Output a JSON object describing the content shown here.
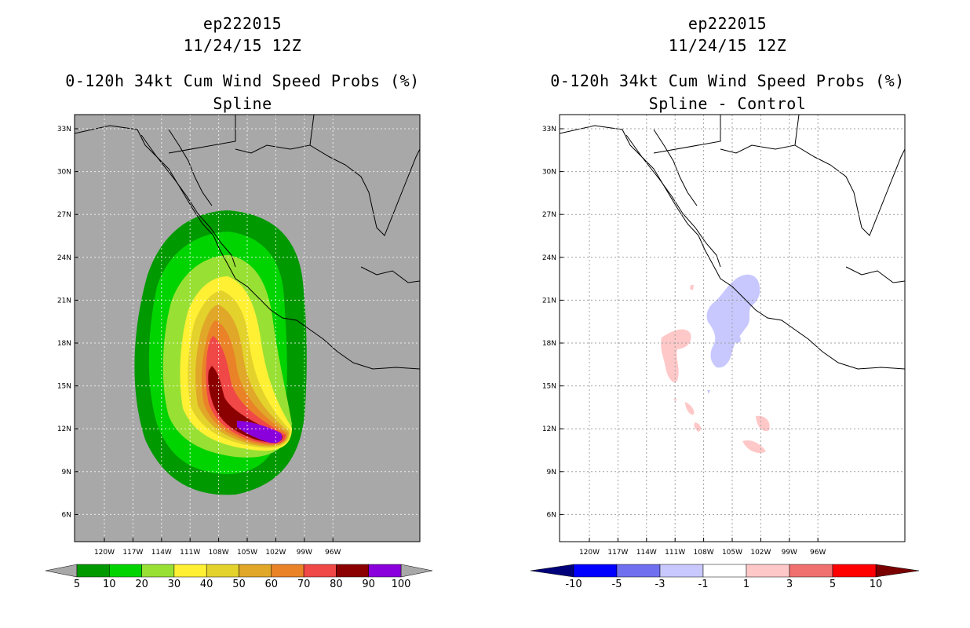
{
  "chart_data": [
    {
      "type": "heatmap",
      "storm_id": "ep222015",
      "datetime": "11/24/15 12Z",
      "title": "0-120h 34kt Cum Wind Speed Probs (%)",
      "subtitle": "Spline",
      "x_tick_labels": [
        "120W",
        "117W",
        "114W",
        "111W",
        "108W",
        "105W",
        "102W",
        "99W",
        "96W"
      ],
      "y_tick_labels": [
        "33N",
        "30N",
        "27N",
        "24N",
        "21N",
        "18N",
        "15N",
        "12N",
        "9N",
        "6N"
      ],
      "colorbar": {
        "labels": [
          "5",
          "10",
          "20",
          "30",
          "40",
          "50",
          "60",
          "70",
          "80",
          "90",
          "100"
        ],
        "colors": [
          "#009900",
          "#00d400",
          "#99e034",
          "#fff033",
          "#e3d22c",
          "#e0a728",
          "#ea8228",
          "#f04747",
          "#8b0000",
          "#8a00dc"
        ]
      },
      "grid": true
    },
    {
      "type": "heatmap",
      "storm_id": "ep222015",
      "datetime": "11/24/15 12Z",
      "title": "0-120h 34kt Cum Wind Speed Probs (%)",
      "subtitle": "Spline - Control",
      "x_tick_labels": [
        "120W",
        "117W",
        "114W",
        "111W",
        "108W",
        "105W",
        "102W",
        "99W",
        "96W"
      ],
      "y_tick_labels": [
        "33N",
        "30N",
        "27N",
        "24N",
        "21N",
        "18N",
        "15N",
        "12N",
        "9N",
        "6N"
      ],
      "colorbar": {
        "labels": [
          "-10",
          "-5",
          "-3",
          "-1",
          "1",
          "3",
          "5",
          "10"
        ],
        "colors": [
          "#0000ff",
          "#6f6ff0",
          "#c8c8ff",
          "#ffffff",
          "#ffc8c8",
          "#f07070",
          "#ff0000"
        ],
        "end_colors": [
          "#00007a",
          "#7a0000"
        ]
      },
      "grid": true
    }
  ]
}
